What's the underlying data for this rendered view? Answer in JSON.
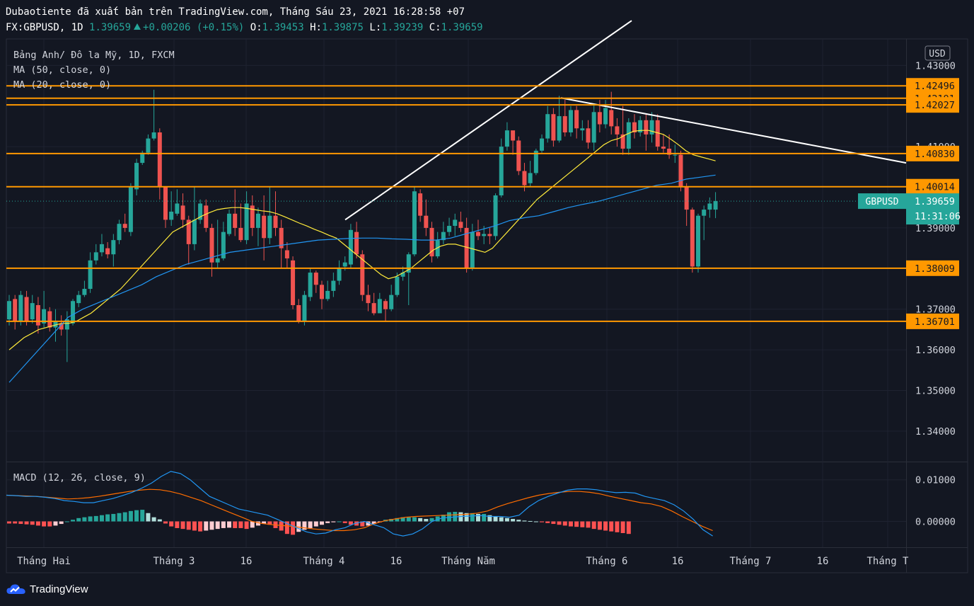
{
  "header": {
    "line1": "Dubaotiente đã xuất bản trên TradingView.com, Tháng Sáu 23, 2021 16:28:58 +07",
    "symbol": "FX:GBPUSD, 1D",
    "last": "1.39659",
    "change": "+0.00206 (+0.15%)",
    "o_label": "O:",
    "o": "1.39453",
    "h_label": "H:",
    "h": "1.39875",
    "l_label": "L:",
    "l": "1.39239",
    "c_label": "C:",
    "c": "1.39659"
  },
  "legend": {
    "main": "Bảng Anh/ Đô la Mỹ, 1D, FXCM",
    "ma50": "MA (50, close, 0)",
    "ma20": "MA (20, close, 0)",
    "macd": "MACD (12, 26, close, 9)"
  },
  "currency": "USD",
  "ticker_tag": "GBPUSD",
  "price_tag": "1.39659",
  "countdown": "11:31:06",
  "brand": "TradingView",
  "colors": {
    "background": "#131722",
    "up": "#26a69a",
    "down": "#ef5350",
    "level": "#ff9800",
    "ma20": "#ffeb3b",
    "ma50": "#2196f3",
    "trendline": "#ffffff"
  },
  "chart_data": [
    {
      "type": "candlestick",
      "title": "Bảng Anh/ Đô la Mỹ, 1D, FXCM",
      "ylim": [
        1.3325,
        1.4365
      ],
      "y_ticks": [
        "1.34000",
        "1.35000",
        "1.36000",
        "1.37000",
        "1.39000",
        "1.41000",
        "1.43000"
      ],
      "x_ticks": [
        "Tháng Hai",
        "Tháng 3",
        "16",
        "Tháng 4",
        "16",
        "Tháng Năm",
        "Tháng 6",
        "16",
        "Tháng 7",
        "16",
        "Tháng T"
      ],
      "levels": [
        "1.42496",
        "1.42191",
        "1.42027",
        "1.40830",
        "1.40014",
        "1.38009",
        "1.36701"
      ],
      "last_price": 1.39659,
      "candles": [
        [
          1.3675,
          1.372,
          1.366,
          1.3735
        ],
        [
          1.3725,
          1.367,
          1.365,
          1.3735
        ],
        [
          1.367,
          1.3735,
          1.366,
          1.3745
        ],
        [
          1.373,
          1.367,
          1.366,
          1.3745
        ],
        [
          1.3675,
          1.3715,
          1.3665,
          1.3735
        ],
        [
          1.371,
          1.366,
          1.364,
          1.373
        ],
        [
          1.3665,
          1.37,
          1.3655,
          1.3745
        ],
        [
          1.3695,
          1.3655,
          1.3645,
          1.3705
        ],
        [
          1.3655,
          1.367,
          1.362,
          1.37
        ],
        [
          1.3665,
          1.365,
          1.3635,
          1.3685
        ],
        [
          1.365,
          1.3675,
          1.357,
          1.3695
        ],
        [
          1.3665,
          1.372,
          1.366,
          1.3725
        ],
        [
          1.3715,
          1.3735,
          1.3705,
          1.3745
        ],
        [
          1.3735,
          1.375,
          1.373,
          1.377
        ],
        [
          1.375,
          1.382,
          1.374,
          1.384
        ],
        [
          1.382,
          1.384,
          1.381,
          1.386
        ],
        [
          1.384,
          1.386,
          1.383,
          1.3885
        ],
        [
          1.385,
          1.3835,
          1.3825,
          1.3865
        ],
        [
          1.3835,
          1.387,
          1.3805,
          1.3885
        ],
        [
          1.387,
          1.391,
          1.386,
          1.392
        ],
        [
          1.391,
          1.39,
          1.389,
          1.3935
        ],
        [
          1.389,
          1.4,
          1.388,
          1.401
        ],
        [
          1.3995,
          1.406,
          1.398,
          1.407
        ],
        [
          1.406,
          1.4085,
          1.4055,
          1.409
        ],
        [
          1.4085,
          1.412,
          1.408,
          1.413
        ],
        [
          1.412,
          1.4135,
          1.4115,
          1.424
        ],
        [
          1.4135,
          1.4,
          1.397,
          1.4145
        ],
        [
          1.4,
          1.392,
          1.39,
          1.4
        ],
        [
          1.392,
          1.394,
          1.3905,
          1.399
        ],
        [
          1.3935,
          1.396,
          1.393,
          1.3995
        ],
        [
          1.3955,
          1.392,
          1.39,
          1.3985
        ],
        [
          1.392,
          1.386,
          1.381,
          1.393
        ],
        [
          1.386,
          1.392,
          1.3845,
          1.4
        ],
        [
          1.392,
          1.396,
          1.391,
          1.397
        ],
        [
          1.3955,
          1.39,
          1.389,
          1.397
        ],
        [
          1.39,
          1.3815,
          1.378,
          1.391
        ],
        [
          1.3815,
          1.3825,
          1.38,
          1.392
        ],
        [
          1.3825,
          1.389,
          1.382,
          1.3915
        ],
        [
          1.3885,
          1.3935,
          1.388,
          1.3945
        ],
        [
          1.3935,
          1.39,
          1.388,
          1.3995
        ],
        [
          1.39,
          1.387,
          1.3865,
          1.396
        ],
        [
          1.387,
          1.396,
          1.386,
          1.399
        ],
        [
          1.3955,
          1.39,
          1.388,
          1.398
        ],
        [
          1.39,
          1.3935,
          1.3855,
          1.395
        ],
        [
          1.393,
          1.3875,
          1.382,
          1.398
        ],
        [
          1.3875,
          1.393,
          1.386,
          1.4
        ],
        [
          1.393,
          1.39,
          1.388,
          1.399
        ],
        [
          1.39,
          1.385,
          1.38,
          1.392
        ],
        [
          1.3845,
          1.3825,
          1.38,
          1.3865
        ],
        [
          1.382,
          1.371,
          1.37,
          1.383
        ],
        [
          1.371,
          1.367,
          1.3665,
          1.3725
        ],
        [
          1.367,
          1.3735,
          1.366,
          1.3745
        ],
        [
          1.373,
          1.379,
          1.372,
          1.38
        ],
        [
          1.379,
          1.376,
          1.374,
          1.3795
        ],
        [
          1.376,
          1.3725,
          1.37,
          1.377
        ],
        [
          1.3725,
          1.3745,
          1.372,
          1.377
        ],
        [
          1.3745,
          1.377,
          1.373,
          1.379
        ],
        [
          1.377,
          1.38,
          1.376,
          1.382
        ],
        [
          1.3805,
          1.3815,
          1.3795,
          1.383
        ],
        [
          1.381,
          1.3895,
          1.38,
          1.391
        ],
        [
          1.389,
          1.3835,
          1.3825,
          1.3915
        ],
        [
          1.3835,
          1.3735,
          1.372,
          1.3845
        ],
        [
          1.3735,
          1.3715,
          1.3695,
          1.376
        ],
        [
          1.3715,
          1.369,
          1.3685,
          1.374
        ],
        [
          1.369,
          1.3725,
          1.369,
          1.374
        ],
        [
          1.372,
          1.37,
          1.367,
          1.3725
        ],
        [
          1.37,
          1.3735,
          1.3695,
          1.376
        ],
        [
          1.3735,
          1.378,
          1.373,
          1.379
        ],
        [
          1.378,
          1.379,
          1.377,
          1.3805
        ],
        [
          1.379,
          1.3835,
          1.371,
          1.384
        ],
        [
          1.3835,
          1.399,
          1.383,
          1.4
        ],
        [
          1.3985,
          1.393,
          1.3915,
          1.3995
        ],
        [
          1.393,
          1.39,
          1.388,
          1.397
        ],
        [
          1.39,
          1.383,
          1.3815,
          1.3915
        ],
        [
          1.383,
          1.387,
          1.3825,
          1.389
        ],
        [
          1.387,
          1.389,
          1.386,
          1.3915
        ],
        [
          1.389,
          1.3905,
          1.388,
          1.3925
        ],
        [
          1.3905,
          1.392,
          1.388,
          1.3935
        ],
        [
          1.3915,
          1.39,
          1.389,
          1.394
        ],
        [
          1.39,
          1.38,
          1.379,
          1.3925
        ],
        [
          1.38,
          1.389,
          1.3795,
          1.391
        ],
        [
          1.389,
          1.388,
          1.387,
          1.392
        ],
        [
          1.388,
          1.3885,
          1.386,
          1.3905
        ],
        [
          1.3885,
          1.388,
          1.386,
          1.39
        ],
        [
          1.388,
          1.398,
          1.387,
          1.3985
        ],
        [
          1.398,
          1.41,
          1.3975,
          1.412
        ],
        [
          1.41,
          1.414,
          1.409,
          1.416
        ],
        [
          1.414,
          1.4115,
          1.408,
          1.413
        ],
        [
          1.4115,
          1.404,
          1.403,
          1.4125
        ],
        [
          1.404,
          1.4005,
          1.399,
          1.406
        ],
        [
          1.401,
          1.4035,
          1.4,
          1.4065
        ],
        [
          1.4035,
          1.409,
          1.403,
          1.4095
        ],
        [
          1.409,
          1.412,
          1.4085,
          1.413
        ],
        [
          1.412,
          1.418,
          1.411,
          1.42
        ],
        [
          1.418,
          1.4115,
          1.41,
          1.4195
        ],
        [
          1.4115,
          1.4175,
          1.411,
          1.4225
        ],
        [
          1.4175,
          1.4135,
          1.4125,
          1.4215
        ],
        [
          1.4135,
          1.419,
          1.4125,
          1.42
        ],
        [
          1.419,
          1.4145,
          1.412,
          1.42
        ],
        [
          1.414,
          1.4145,
          1.4115,
          1.4165
        ],
        [
          1.4145,
          1.411,
          1.4095,
          1.4165
        ],
        [
          1.411,
          1.4185,
          1.409,
          1.4205
        ],
        [
          1.4185,
          1.4155,
          1.4135,
          1.4215
        ],
        [
          1.4155,
          1.4195,
          1.4145,
          1.4215
        ],
        [
          1.419,
          1.415,
          1.413,
          1.4235
        ],
        [
          1.415,
          1.413,
          1.41,
          1.417
        ],
        [
          1.413,
          1.4095,
          1.408,
          1.42
        ],
        [
          1.4095,
          1.416,
          1.408,
          1.417
        ],
        [
          1.416,
          1.4135,
          1.412,
          1.418
        ],
        [
          1.4135,
          1.4165,
          1.4125,
          1.4175
        ],
        [
          1.4165,
          1.413,
          1.409,
          1.418
        ],
        [
          1.413,
          1.4165,
          1.411,
          1.4185
        ],
        [
          1.4165,
          1.41,
          1.409,
          1.418
        ],
        [
          1.41,
          1.4095,
          1.4085,
          1.413
        ],
        [
          1.4095,
          1.408,
          1.407,
          1.413
        ],
        [
          1.408,
          1.408,
          1.406,
          1.4105
        ],
        [
          1.408,
          1.4,
          1.399,
          1.409
        ],
        [
          1.4,
          1.3945,
          1.3905,
          1.401
        ],
        [
          1.3945,
          1.3805,
          1.379,
          1.395
        ],
        [
          1.3805,
          1.393,
          1.379,
          1.3935
        ],
        [
          1.393,
          1.3945,
          1.387,
          1.3955
        ],
        [
          1.3945,
          1.396,
          1.3925,
          1.3975
        ],
        [
          1.3945,
          1.3966,
          1.3924,
          1.3988
        ]
      ],
      "ma20": [
        1.36,
        1.3615,
        1.363,
        1.364,
        1.365,
        1.3655,
        1.366,
        1.3665,
        1.3665,
        1.367,
        1.368,
        1.369,
        1.3705,
        1.372,
        1.3735,
        1.375,
        1.377,
        1.379,
        1.381,
        1.383,
        1.385,
        1.387,
        1.389,
        1.39,
        1.391,
        1.392,
        1.393,
        1.3938,
        1.3945,
        1.3948,
        1.395,
        1.395,
        1.3948,
        1.3945,
        1.3942,
        1.394,
        1.3935,
        1.3928,
        1.392,
        1.3912,
        1.3905,
        1.3897,
        1.389,
        1.3882,
        1.3875,
        1.386,
        1.3845,
        1.383,
        1.3815,
        1.38,
        1.3785,
        1.3775,
        1.378,
        1.379,
        1.38,
        1.3815,
        1.383,
        1.3845,
        1.3855,
        1.386,
        1.386,
        1.3855,
        1.385,
        1.3845,
        1.384,
        1.385,
        1.387,
        1.389,
        1.391,
        1.393,
        1.395,
        1.397,
        1.3985,
        1.4,
        1.4015,
        1.403,
        1.4045,
        1.406,
        1.4075,
        1.409,
        1.4105,
        1.4115,
        1.412,
        1.413,
        1.4138,
        1.414,
        1.414,
        1.4135,
        1.413,
        1.4118,
        1.4105,
        1.409,
        1.408,
        1.4075,
        1.407,
        1.4065
      ],
      "ma50": [
        1.352,
        1.356,
        1.36,
        1.364,
        1.368,
        1.37,
        1.3715,
        1.373,
        1.3745,
        1.376,
        1.378,
        1.3795,
        1.381,
        1.382,
        1.383,
        1.384,
        1.3845,
        1.385,
        1.3855,
        1.386,
        1.3865,
        1.387,
        1.3872,
        1.3874,
        1.3875,
        1.3875,
        1.3873,
        1.3872,
        1.387,
        1.387,
        1.3875,
        1.3885,
        1.3895,
        1.3905,
        1.3918,
        1.3925,
        1.393,
        1.394,
        1.395,
        1.3958,
        1.3965,
        1.3975,
        1.3985,
        1.3995,
        1.4005,
        1.401,
        1.402,
        1.4025,
        1.403
      ],
      "trendlines": [
        {
          "from": [
            1.392
          ],
          "to": [
            1.441
          ]
        },
        {
          "from": [
            1.422
          ],
          "to": [
            1.406
          ]
        }
      ]
    },
    {
      "type": "macd",
      "title": "MACD (12, 26, close, 9)",
      "ylim": [
        -0.0062,
        0.0142
      ],
      "y_ticks": [
        "0.01000",
        "0.00000"
      ],
      "macd": [
        0.0063,
        0.0062,
        0.006,
        0.006,
        0.0058,
        0.0055,
        0.005,
        0.0048,
        0.0045,
        0.0045,
        0.005,
        0.0055,
        0.0062,
        0.007,
        0.008,
        0.0092,
        0.0108,
        0.012,
        0.0115,
        0.01,
        0.008,
        0.006,
        0.005,
        0.004,
        0.003,
        0.0025,
        0.002,
        0.0015,
        0.0005,
        -0.0005,
        -0.0015,
        -0.0025,
        -0.003,
        -0.0028,
        -0.002,
        -0.0015,
        -0.0005,
        0.0,
        -0.0008,
        -0.0015,
        -0.003,
        -0.0035,
        -0.003,
        -0.0018,
        0.0,
        0.0008,
        0.001,
        0.0012,
        0.0013,
        0.0014,
        0.0012,
        0.0012,
        0.001,
        0.0015,
        0.0035,
        0.005,
        0.006,
        0.0068,
        0.0075,
        0.0078,
        0.0078,
        0.0076,
        0.0072,
        0.0069,
        0.007,
        0.0068,
        0.006,
        0.0055,
        0.005,
        0.004,
        0.0025,
        0.0005,
        -0.002,
        -0.0035
      ],
      "signal": [
        0.0063,
        0.0062,
        0.0061,
        0.006,
        0.0058,
        0.0056,
        0.0054,
        0.0055,
        0.0057,
        0.006,
        0.0064,
        0.0068,
        0.0072,
        0.0075,
        0.0077,
        0.0076,
        0.0072,
        0.0066,
        0.0058,
        0.005,
        0.004,
        0.003,
        0.002,
        0.001,
        0.0,
        -0.0005,
        -0.0008,
        -0.001,
        -0.0012,
        -0.0015,
        -0.0018,
        -0.002,
        -0.0022,
        -0.0022,
        -0.002,
        -0.0015,
        -0.0005,
        0.0002,
        0.0006,
        0.001,
        0.0012,
        0.0013,
        0.0014,
        0.0015,
        0.0016,
        0.0017,
        0.002,
        0.0025,
        0.0035,
        0.0043,
        0.005,
        0.0057,
        0.0063,
        0.0067,
        0.007,
        0.0072,
        0.0072,
        0.007,
        0.0066,
        0.006,
        0.0055,
        0.005,
        0.0045,
        0.0042,
        0.0036,
        0.0025,
        0.0012,
        0.0,
        -0.0012,
        -0.0022
      ],
      "hist": [
        -0.0005,
        -0.0005,
        -0.0006,
        -0.0007,
        -0.0008,
        -0.001,
        -0.0012,
        -0.0012,
        -0.001,
        -0.0006,
        0.0,
        0.0004,
        0.0008,
        0.001,
        0.0012,
        0.0013,
        0.0015,
        0.0017,
        0.0018,
        0.002,
        0.0022,
        0.0025,
        0.0027,
        0.0028,
        0.002,
        0.001,
        0.0005,
        -0.0005,
        -0.0012,
        -0.0016,
        -0.0018,
        -0.002,
        -0.0022,
        -0.0024,
        -0.0022,
        -0.002,
        -0.0018,
        -0.0016,
        -0.0015,
        -0.0016,
        -0.0016,
        -0.0018,
        -0.0015,
        -0.001,
        -0.0005,
        -0.0008,
        -0.0016,
        -0.0022,
        -0.003,
        -0.0032,
        -0.0025,
        -0.002,
        -0.0016,
        -0.0012,
        -0.0008,
        -0.0004,
        -0.0002,
        0.0,
        -0.0004,
        -0.0008,
        -0.001,
        -0.0012,
        -0.001,
        -0.0006,
        -0.0002,
        0.0004,
        0.0006,
        0.0008,
        0.001,
        0.001,
        0.001,
        0.0008,
        0.0006,
        0.0008,
        0.0012,
        0.0016,
        0.0022,
        0.0023,
        0.0022,
        0.002,
        0.002,
        0.0018,
        0.0018,
        0.0015,
        0.0012,
        0.001,
        0.0008,
        0.0006,
        0.0004,
        0.0002,
        0.0001,
        0.0,
        -0.0002,
        -0.0004,
        -0.0006,
        -0.0008,
        -0.001,
        -0.0012,
        -0.0013,
        -0.0014,
        -0.0015,
        -0.0018,
        -0.002,
        -0.0022,
        -0.0024,
        -0.0026,
        -0.0028,
        -0.003
      ]
    }
  ]
}
